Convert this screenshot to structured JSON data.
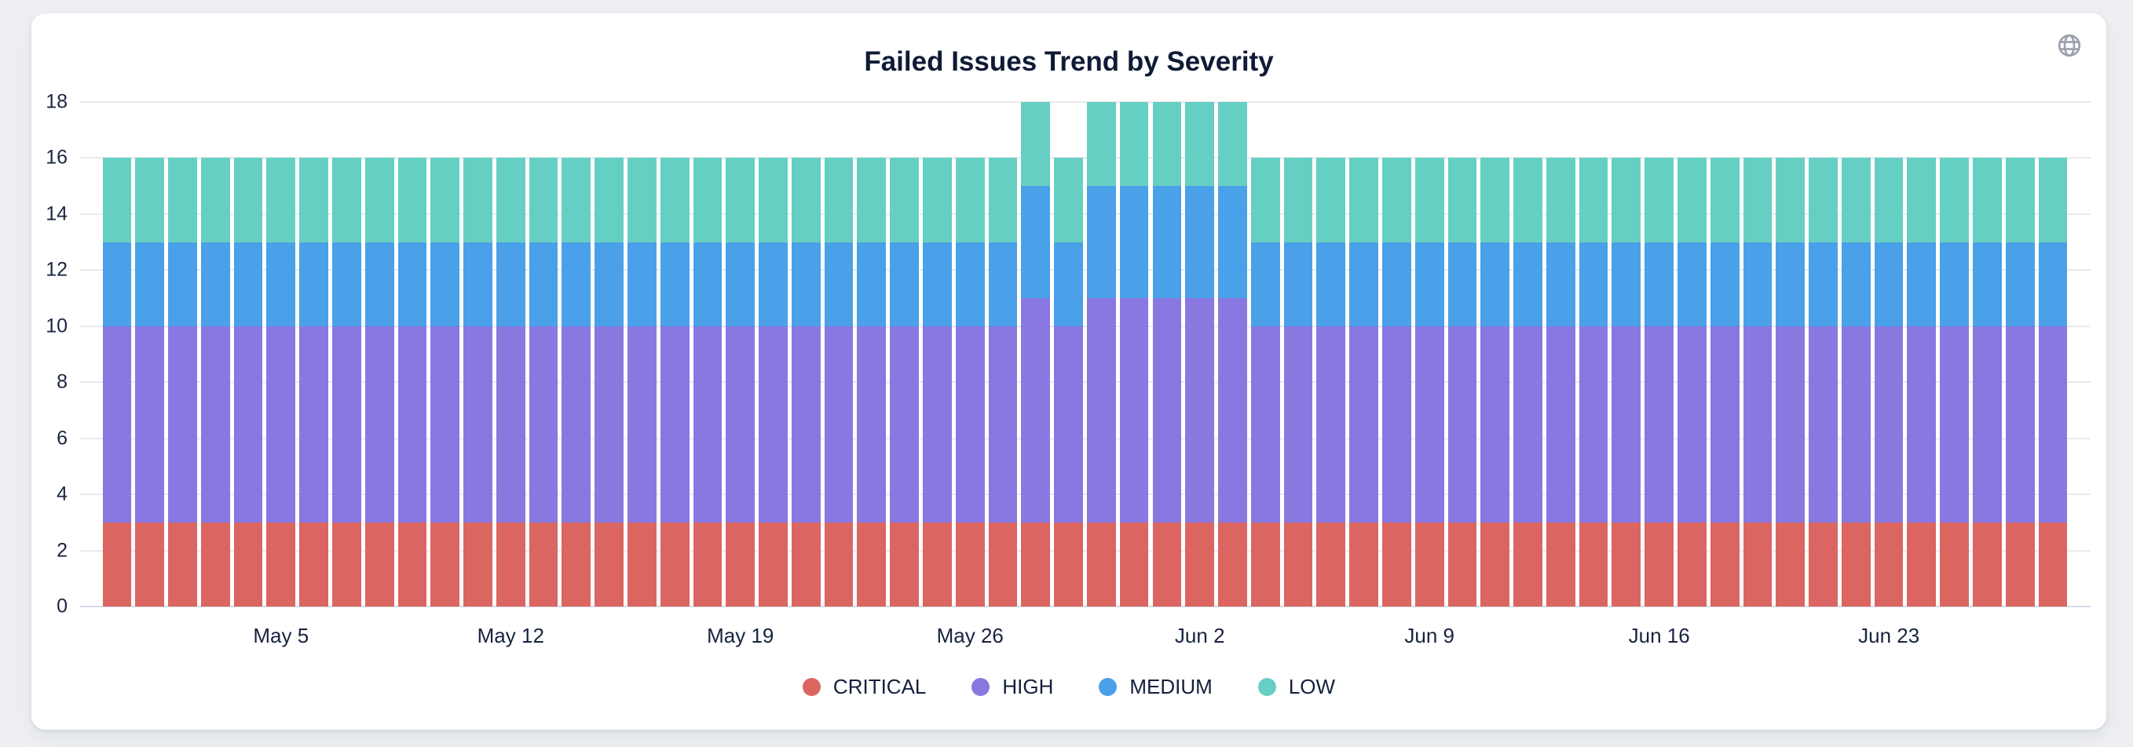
{
  "header": {
    "title": "Failed Issues Trend by Severity",
    "icon": "globe"
  },
  "colors": {
    "page_background": "#edeff2",
    "card_background": "#ffffff",
    "gridline": "#e9eaee",
    "axis_line": "#d6dcea",
    "text": "#16213d",
    "globe_icon": "#9aa2ac",
    "critical": "#db6561",
    "high": "#8a78e1",
    "medium": "#4aa0e9",
    "low": "#66cfc3"
  },
  "chart_data": {
    "type": "bar",
    "stacked": true,
    "title": "Failed Issues Trend by Severity",
    "grid": true,
    "legend_position": "bottom",
    "categories": [
      "Apr 30",
      "May 1",
      "May 2",
      "May 3",
      "May 4",
      "May 5",
      "May 6",
      "May 7",
      "May 8",
      "May 9",
      "May 10",
      "May 11",
      "May 12",
      "May 13",
      "May 14",
      "May 15",
      "May 16",
      "May 17",
      "May 18",
      "May 19",
      "May 20",
      "May 21",
      "May 22",
      "May 23",
      "May 24",
      "May 25",
      "May 26",
      "May 27",
      "May 28",
      "May 29",
      "May 30",
      "May 31",
      "Jun 1",
      "Jun 2",
      "Jun 3",
      "Jun 4",
      "Jun 5",
      "Jun 6",
      "Jun 7",
      "Jun 8",
      "Jun 9",
      "Jun 10",
      "Jun 11",
      "Jun 12",
      "Jun 13",
      "Jun 14",
      "Jun 15",
      "Jun 16",
      "Jun 17",
      "Jun 18",
      "Jun 19",
      "Jun 20",
      "Jun 21",
      "Jun 22",
      "Jun 23",
      "Jun 24",
      "Jun 25",
      "Jun 26",
      "Jun 27",
      "Jun 28"
    ],
    "series": [
      {
        "name": "CRITICAL",
        "color": "#db6561",
        "values": [
          3,
          3,
          3,
          3,
          3,
          3,
          3,
          3,
          3,
          3,
          3,
          3,
          3,
          3,
          3,
          3,
          3,
          3,
          3,
          3,
          3,
          3,
          3,
          3,
          3,
          3,
          3,
          3,
          3,
          3,
          3,
          3,
          3,
          3,
          3,
          3,
          3,
          3,
          3,
          3,
          3,
          3,
          3,
          3,
          3,
          3,
          3,
          3,
          3,
          3,
          3,
          3,
          3,
          3,
          3,
          3,
          3,
          3,
          3,
          3
        ]
      },
      {
        "name": "HIGH",
        "color": "#8a78e1",
        "values": [
          7,
          7,
          7,
          7,
          7,
          7,
          7,
          7,
          7,
          7,
          7,
          7,
          7,
          7,
          7,
          7,
          7,
          7,
          7,
          7,
          7,
          7,
          7,
          7,
          7,
          7,
          7,
          7,
          8,
          7,
          8,
          8,
          8,
          8,
          8,
          7,
          7,
          7,
          7,
          7,
          7,
          7,
          7,
          7,
          7,
          7,
          7,
          7,
          7,
          7,
          7,
          7,
          7,
          7,
          7,
          7,
          7,
          7,
          7,
          7
        ]
      },
      {
        "name": "MEDIUM",
        "color": "#4aa0e9",
        "values": [
          3,
          3,
          3,
          3,
          3,
          3,
          3,
          3,
          3,
          3,
          3,
          3,
          3,
          3,
          3,
          3,
          3,
          3,
          3,
          3,
          3,
          3,
          3,
          3,
          3,
          3,
          3,
          3,
          4,
          3,
          4,
          4,
          4,
          4,
          4,
          3,
          3,
          3,
          3,
          3,
          3,
          3,
          3,
          3,
          3,
          3,
          3,
          3,
          3,
          3,
          3,
          3,
          3,
          3,
          3,
          3,
          3,
          3,
          3,
          3
        ]
      },
      {
        "name": "LOW",
        "color": "#66cfc3",
        "values": [
          3,
          3,
          3,
          3,
          3,
          3,
          3,
          3,
          3,
          3,
          3,
          3,
          3,
          3,
          3,
          3,
          3,
          3,
          3,
          3,
          3,
          3,
          3,
          3,
          3,
          3,
          3,
          3,
          3,
          3,
          3,
          3,
          3,
          3,
          3,
          3,
          3,
          3,
          3,
          3,
          3,
          3,
          3,
          3,
          3,
          3,
          3,
          3,
          3,
          3,
          3,
          3,
          3,
          3,
          3,
          3,
          3,
          3,
          3,
          3
        ]
      }
    ],
    "y_axis": {
      "min": 0,
      "max": 18,
      "step": 2,
      "ticks": [
        0,
        2,
        4,
        6,
        8,
        10,
        12,
        14,
        16,
        18
      ]
    },
    "x_axis": {
      "visible_tick_labels": [
        "May 5",
        "May 12",
        "May 19",
        "May 26",
        "Jun 2",
        "Jun 9",
        "Jun 16",
        "Jun 23"
      ],
      "visible_tick_indices": [
        5,
        12,
        19,
        26,
        33,
        40,
        47,
        54
      ]
    },
    "legend": [
      "CRITICAL",
      "HIGH",
      "MEDIUM",
      "LOW"
    ]
  }
}
